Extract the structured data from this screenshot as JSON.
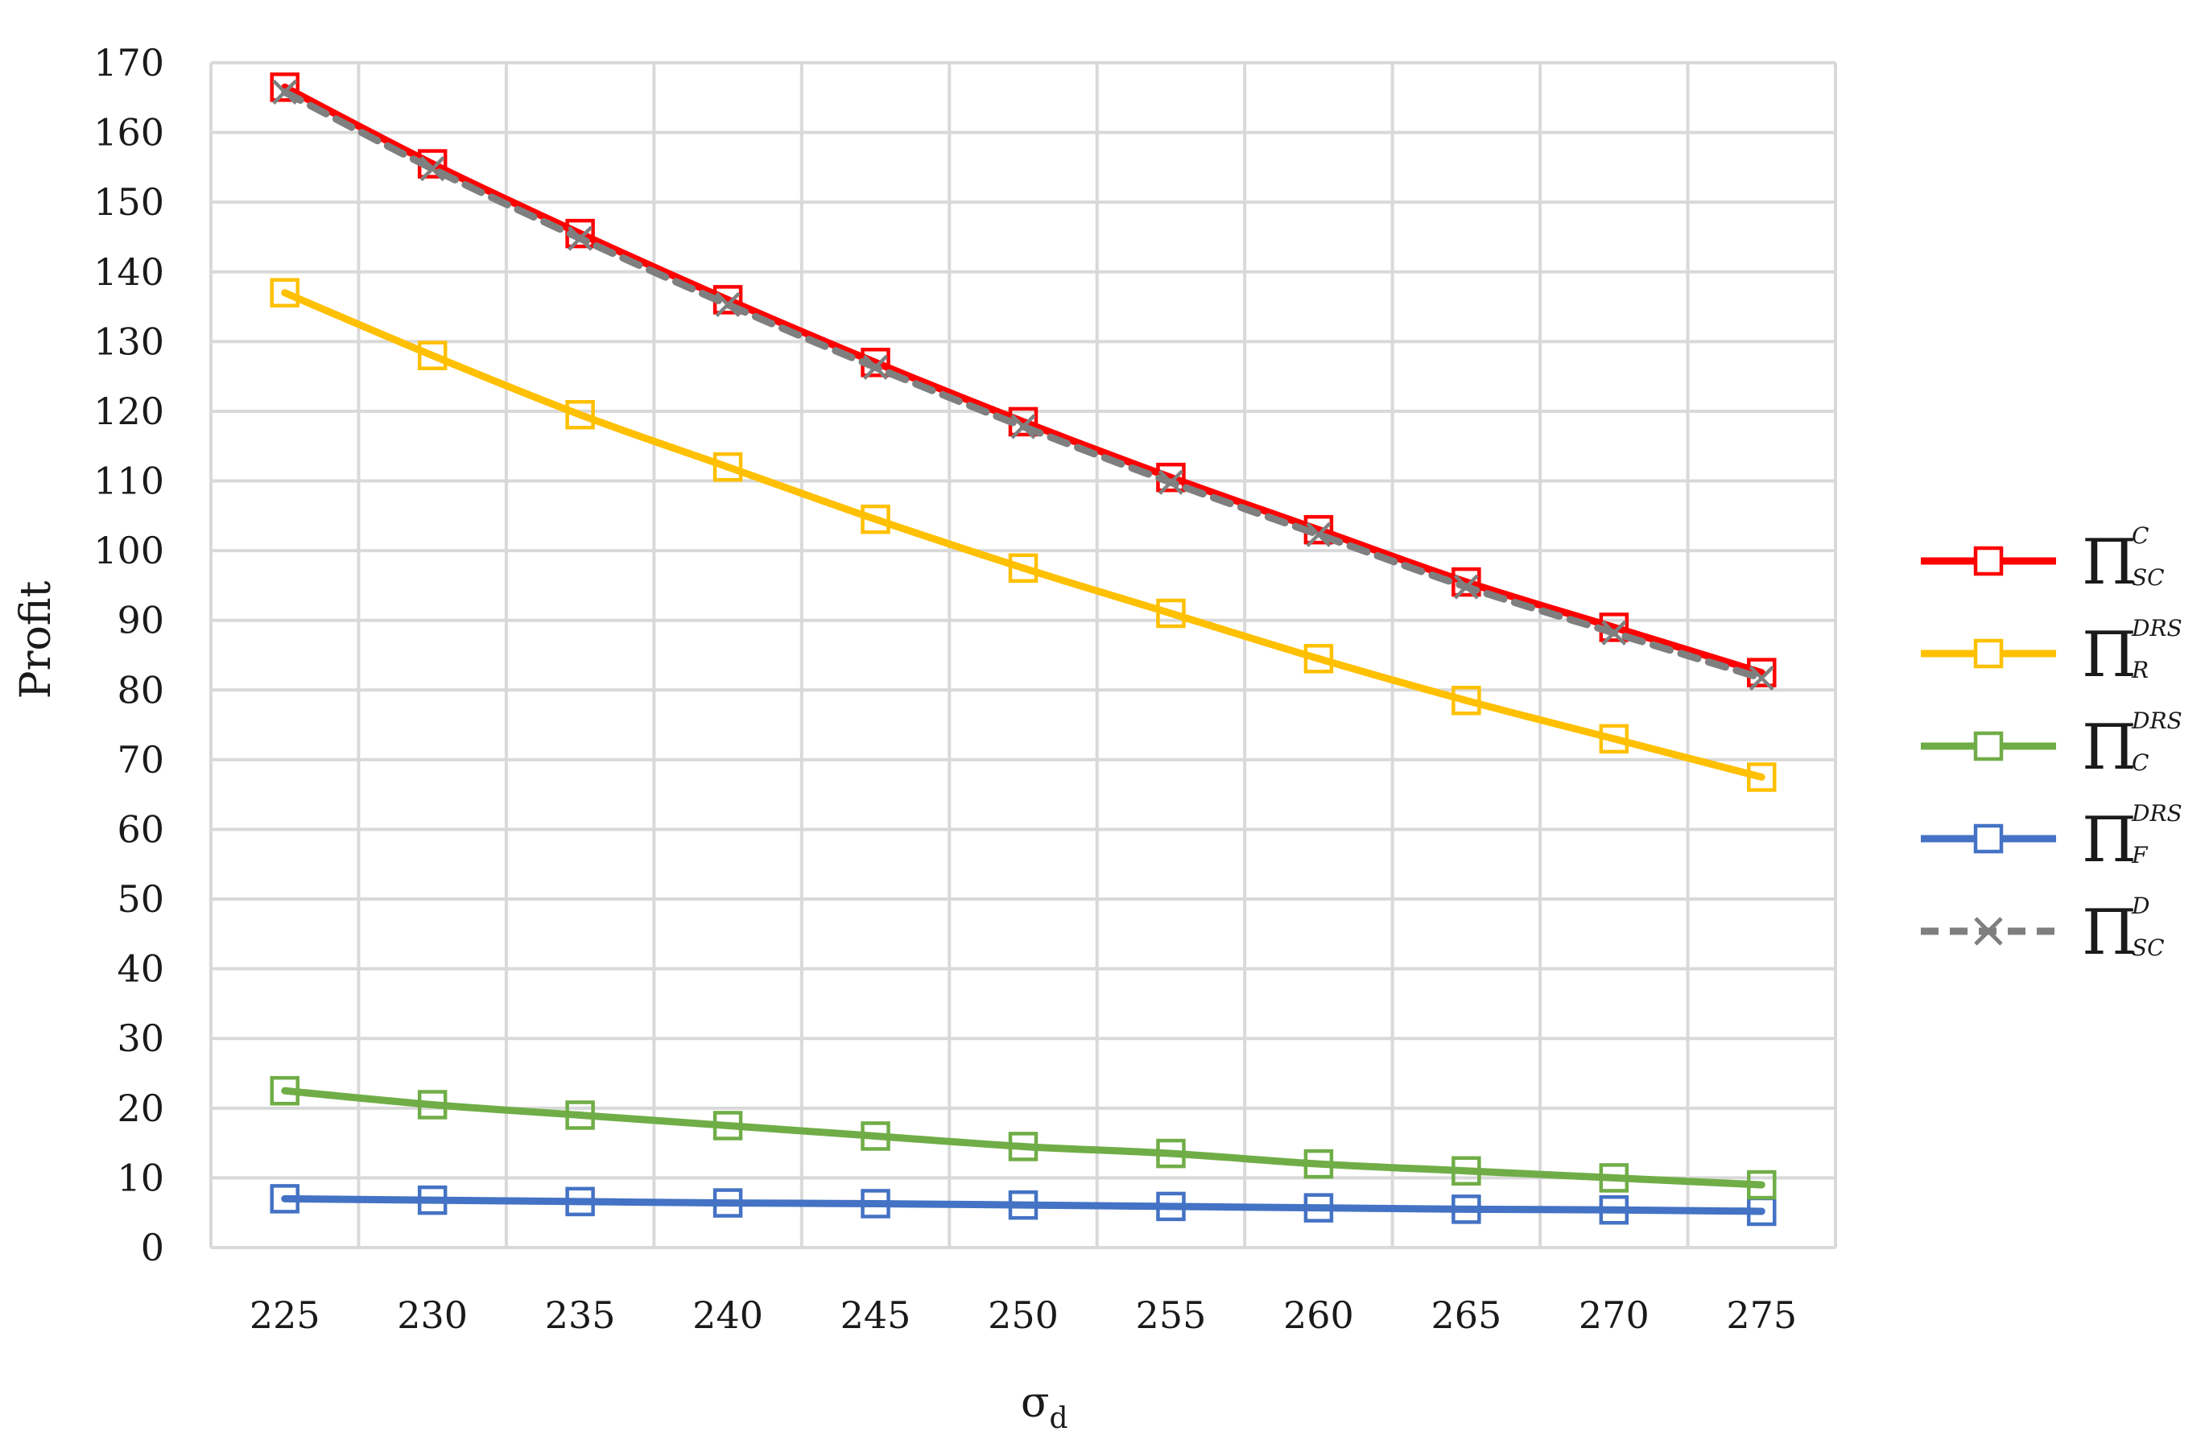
{
  "chart_data": {
    "type": "line",
    "xlabel": "σ",
    "xlabel_sub": "d",
    "ylabel": "Profit",
    "x": [
      225,
      230,
      235,
      240,
      245,
      250,
      255,
      260,
      265,
      270,
      275
    ],
    "xlim": [
      225,
      275
    ],
    "ylim": [
      0,
      170
    ],
    "yticks": [
      0,
      10,
      20,
      30,
      40,
      50,
      60,
      70,
      80,
      90,
      100,
      110,
      120,
      130,
      140,
      150,
      160,
      170
    ],
    "grid": true,
    "legend_position": "right",
    "series": [
      {
        "name": "Π_SC^C",
        "symbol": "Π",
        "sup": "C",
        "sub": "SC",
        "color": "#ff0000",
        "marker": "square",
        "dashed": false,
        "values": [
          166.5,
          155.5,
          145.5,
          136,
          127,
          118.5,
          110.5,
          103,
          95.5,
          89,
          82.5
        ]
      },
      {
        "name": "Π_R^DRS",
        "symbol": "Π",
        "sup": "DRS",
        "sub": "R",
        "color": "#ffc000",
        "marker": "square",
        "dashed": false,
        "values": [
          137,
          128,
          119.5,
          112,
          104.5,
          97.5,
          91,
          84.5,
          78.5,
          73,
          67.5
        ]
      },
      {
        "name": "Π_C^DRS",
        "symbol": "Π",
        "sup": "DRS",
        "sub": "C",
        "color": "#70ad47",
        "marker": "square",
        "dashed": false,
        "values": [
          22.5,
          20.5,
          19,
          17.5,
          16,
          14.5,
          13.5,
          12,
          11,
          10,
          9
        ]
      },
      {
        "name": "Π_F^DRS",
        "symbol": "Π",
        "sup": "DRS",
        "sub": "F",
        "color": "#4472c4",
        "marker": "square",
        "dashed": false,
        "values": [
          7,
          6.8,
          6.6,
          6.4,
          6.3,
          6.1,
          5.9,
          5.7,
          5.5,
          5.4,
          5.2
        ]
      },
      {
        "name": "Π_SC^D",
        "symbol": "Π",
        "sup": "D",
        "sub": "SC",
        "color": "#7f7f7f",
        "marker": "x",
        "dashed": true,
        "values": [
          165.8,
          154.8,
          144.8,
          135.3,
          126.3,
          117.8,
          109.8,
          102.3,
          94.8,
          88.2,
          81.7
        ]
      }
    ]
  }
}
